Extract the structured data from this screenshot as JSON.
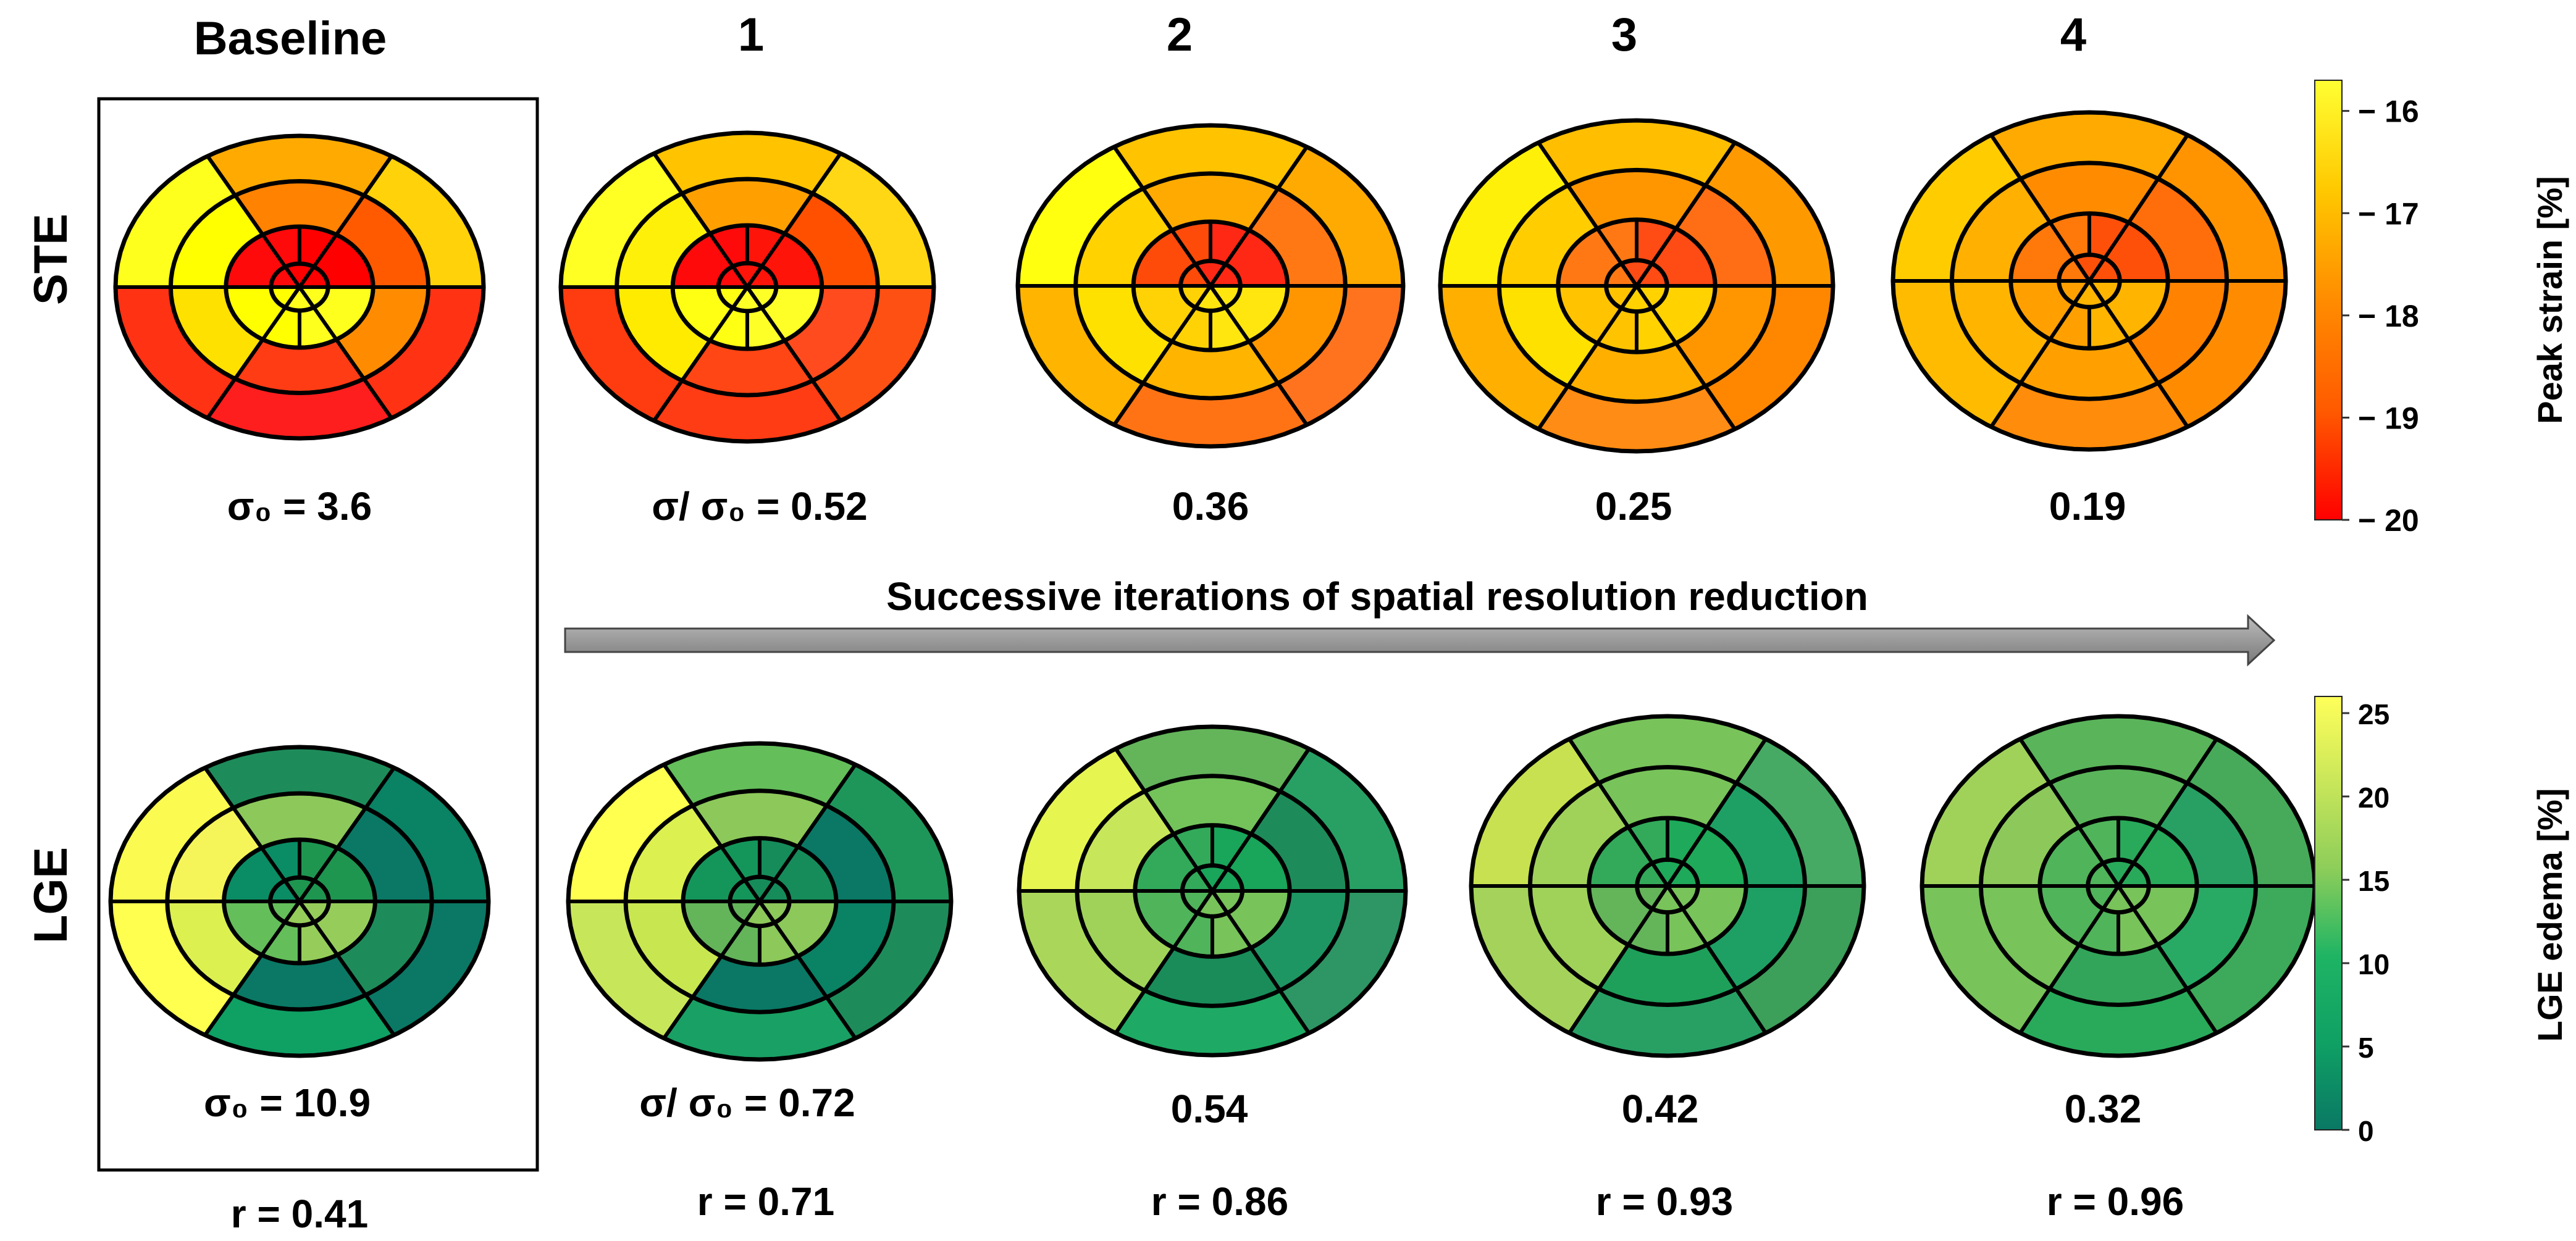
{
  "column_headers": [
    "Baseline",
    "1",
    "2",
    "3",
    "4"
  ],
  "row_labels": [
    "STE",
    "LGE"
  ],
  "arrow_label": "Successive iterations of spatial resolution reduction",
  "colorbars": [
    {
      "label": "Peak strain [%]",
      "ticks": [
        "− 16",
        "− 17",
        "− 18",
        "− 19",
        "− 20"
      ],
      "tick_values": [
        -16,
        -17,
        -18,
        -19,
        -20
      ],
      "range": [
        -20,
        -15.7
      ],
      "colors_high_to_low": [
        "#ffff33",
        "#ffc800",
        "#ff8c00",
        "#ff5a00",
        "#ff0000"
      ]
    },
    {
      "label": "LGE edema [%]",
      "ticks": [
        "25",
        "20",
        "15",
        "10",
        "5",
        "0"
      ],
      "tick_values": [
        25,
        20,
        15,
        10,
        5,
        0
      ],
      "range": [
        0,
        26
      ],
      "colors_high_to_low": [
        "#ffff5a",
        "#c8e65a",
        "#8ccd5a",
        "#1eb464",
        "#0fa064",
        "#0a7864"
      ]
    }
  ],
  "ste_maps": [
    {
      "label_prefix": "σ₀ = ",
      "label_value": "3.6",
      "colors": [
        "#ffd20a",
        "#ffaa00",
        "#ffff1e",
        "#ff3214",
        "#ff1e1e",
        "#ff3214",
        "#ff5a00",
        "#ff8200",
        "#ffff00",
        "#ffe100",
        "#ff3c14",
        "#ff8c00",
        "#ff0000",
        "#ff0a0a",
        "#ffff00",
        "#ffff1e"
      ]
    },
    {
      "label_prefix": "σ/ σ₀ = ",
      "label_value": "0.52",
      "colors": [
        "#ffd714",
        "#ffc300",
        "#ffff23",
        "#ff3c0f",
        "#ff3c14",
        "#ff5014",
        "#ff5000",
        "#ffa000",
        "#fff00a",
        "#ffeb00",
        "#ff4614",
        "#ff4b1e",
        "#ff140a",
        "#ff0a0a",
        "#ffff14",
        "#ffff28"
      ]
    },
    {
      "label_prefix": "",
      "label_value": "0.36",
      "colors": [
        "#ffaa00",
        "#ffc300",
        "#ffff0f",
        "#ffb400",
        "#ff7314",
        "#ff731e",
        "#ff7814",
        "#ffaa00",
        "#ffd200",
        "#ffe100",
        "#ffb400",
        "#ff9600",
        "#ff2814",
        "#ff4b0a",
        "#ffd205",
        "#ffe60f"
      ]
    },
    {
      "label_prefix": "",
      "label_value": "0.25",
      "colors": [
        "#ff9900",
        "#ffbe00",
        "#fff00a",
        "#ffaf00",
        "#ff8c14",
        "#ff8700",
        "#ff6e14",
        "#ff9600",
        "#ffcd00",
        "#ffe100",
        "#ffaf00",
        "#ff9600",
        "#ff4b14",
        "#ff7814",
        "#ffc300",
        "#ffd200"
      ]
    },
    {
      "label_prefix": "",
      "label_value": "0.19",
      "colors": [
        "#ff9400",
        "#ffaa00",
        "#ffcc00",
        "#ffbb00",
        "#ff8c0a",
        "#ff8c00",
        "#ff6e0a",
        "#ff8c00",
        "#ffb000",
        "#ffb400",
        "#ffa000",
        "#ff8200",
        "#ff500a",
        "#ff780a",
        "#ffa000",
        "#ffb400"
      ]
    }
  ],
  "lge_maps": [
    {
      "label_prefix": "σ₀ = ",
      "label_value": "10.9",
      "colors": [
        "#0a8264",
        "#1e8c5a",
        "#fafa50",
        "#ffff50",
        "#0fa064",
        "#0a7864",
        "#0a7864",
        "#8cc85a",
        "#f5f55a",
        "#dcf050",
        "#0a7864",
        "#1e8c5a",
        "#1e9650",
        "#0a8c64",
        "#64be5a",
        "#96cd5a"
      ]
    },
    {
      "label_prefix": "σ/ σ₀ = ",
      "label_value": "0.72",
      "colors": [
        "#1e965a",
        "#64be5a",
        "#ffff50",
        "#c8e65a",
        "#19a064",
        "#1e8c5a",
        "#0a7864",
        "#8cc85a",
        "#dcf050",
        "#c8e650",
        "#0a7864",
        "#0a8264",
        "#168c5a",
        "#14965a",
        "#64b45a",
        "#8cc85a"
      ]
    },
    {
      "label_prefix": "",
      "label_value": "0.54",
      "colors": [
        "#28a064",
        "#64b45a",
        "#e6f550",
        "#aad75a",
        "#1eaa64",
        "#2d9664",
        "#1e8c5a",
        "#73c35a",
        "#c8e65a",
        "#a0d25a",
        "#198c5a",
        "#1e9664",
        "#19a55a",
        "#32aa5a",
        "#50b45a",
        "#78c35a"
      ]
    },
    {
      "label_prefix": "",
      "label_value": "0.42",
      "colors": [
        "#46aa64",
        "#78c35a",
        "#c8e150",
        "#a5d25a",
        "#28a064",
        "#3c9f5a",
        "#1ea064",
        "#78c35a",
        "#a0d25a",
        "#a0d25a",
        "#1ea05a",
        "#1ea064",
        "#1eaa5a",
        "#32aa5a",
        "#64b45a",
        "#78c35a"
      ]
    },
    {
      "label_prefix": "",
      "label_value": "0.32",
      "colors": [
        "#46aa5a",
        "#5ab45a",
        "#a0d25a",
        "#78c35a",
        "#28aa5a",
        "#3caa5a",
        "#28a064",
        "#5ab45a",
        "#8cc85a",
        "#78c35a",
        "#32a55a",
        "#28aa64",
        "#28aa5a",
        "#50b45a",
        "#50b45a",
        "#78c35a"
      ]
    }
  ],
  "r_values": [
    "r = 0.41",
    "r = 0.71",
    "r = 0.86",
    "r = 0.93",
    "r = 0.96"
  ]
}
